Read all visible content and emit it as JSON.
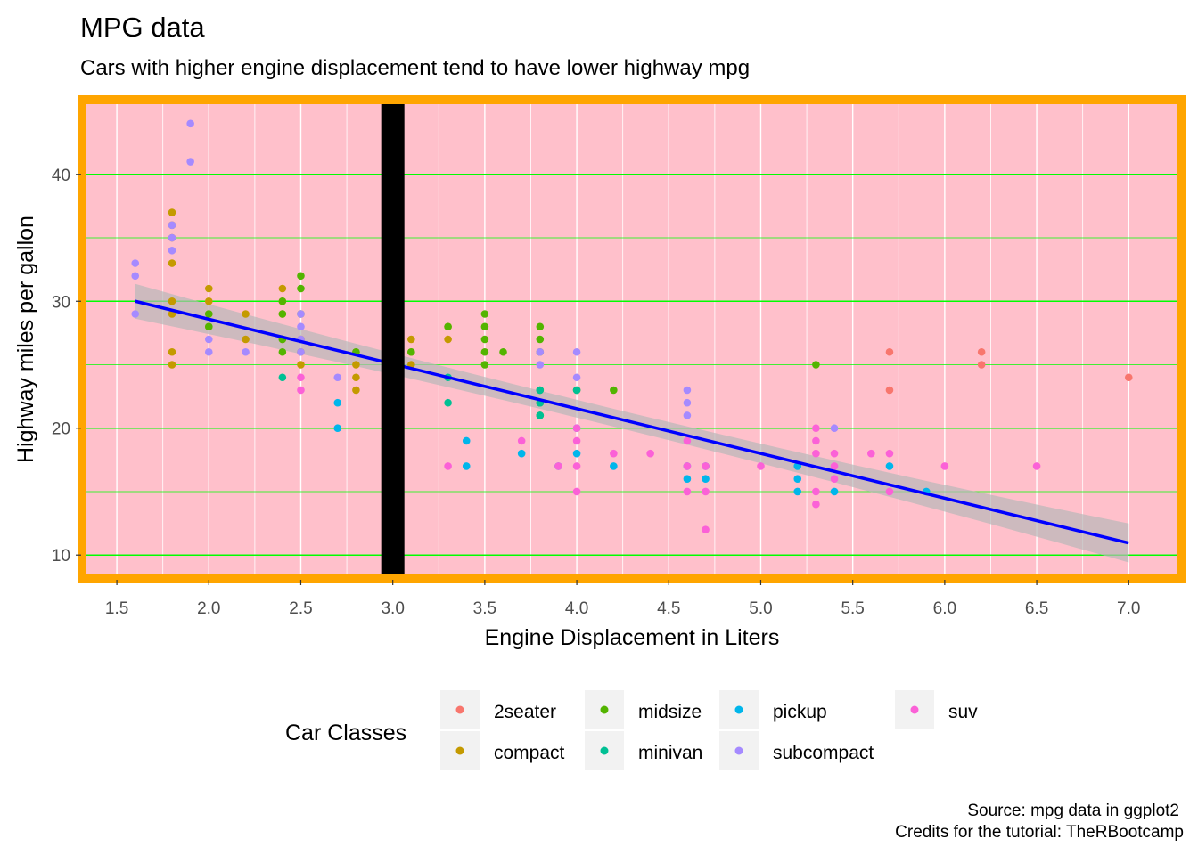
{
  "chart_data": {
    "type": "scatter",
    "title": "MPG data",
    "subtitle": "Cars with higher engine displacement tend to have lower highway mpg",
    "xlabel": "Engine Displacement in Liters",
    "ylabel": "Highway miles per gallon",
    "caption": [
      "Source: mpg data in ggplot2",
      "Credits for the tutorial: TheRBootcamp"
    ],
    "xlim": [
      1.33,
      7.27
    ],
    "ylim": [
      8.4,
      45.6
    ],
    "x_ticks": [
      "1.5",
      "2.0",
      "2.5",
      "3.0",
      "3.5",
      "4.0",
      "4.5",
      "5.0",
      "5.5",
      "6.0",
      "6.5",
      "7.0"
    ],
    "y_ticks": [
      "10",
      "20",
      "30",
      "40"
    ],
    "grid": true,
    "colors": {
      "panel_background": "#FFC0CB",
      "panel_border": "#FFA500",
      "major_grid_y": "#00FF00",
      "minor_grid_y": "#00FF00",
      "grid_x": "#FFFFFF",
      "trend_line": "#0000FF",
      "confidence_band": "#B8B8B8",
      "vline": "#000000"
    },
    "vline": {
      "x": 3.0,
      "color": "#000000"
    },
    "trend": {
      "type": "linear",
      "x": [
        1.6,
        7.0
      ],
      "y": [
        30.0,
        10.95
      ],
      "band_halfwidth": [
        0.7,
        1.45
      ]
    },
    "legend": {
      "title": "Car Classes",
      "position": "bottom",
      "entries": [
        {
          "name": "2seater",
          "color": "#F8766D"
        },
        {
          "name": "compact",
          "color": "#C49A00"
        },
        {
          "name": "midsize",
          "color": "#53B400"
        },
        {
          "name": "minivan",
          "color": "#00C094"
        },
        {
          "name": "pickup",
          "color": "#00B6EB"
        },
        {
          "name": "subcompact",
          "color": "#A58AFF"
        },
        {
          "name": "suv",
          "color": "#FB61D7"
        }
      ]
    },
    "series": [
      {
        "name": "2seater",
        "color": "#F8766D",
        "points": [
          [
            5.7,
            26
          ],
          [
            5.7,
            23
          ],
          [
            6.2,
            26
          ],
          [
            6.2,
            25
          ],
          [
            7.0,
            24
          ]
        ]
      },
      {
        "name": "compact",
        "color": "#C49A00",
        "points": [
          [
            1.8,
            37
          ],
          [
            1.8,
            36
          ],
          [
            1.8,
            35
          ],
          [
            1.8,
            33
          ],
          [
            1.8,
            30
          ],
          [
            1.8,
            29
          ],
          [
            1.8,
            26
          ],
          [
            1.8,
            25
          ],
          [
            2.0,
            31
          ],
          [
            2.0,
            30
          ],
          [
            2.0,
            29
          ],
          [
            2.0,
            28
          ],
          [
            2.2,
            29
          ],
          [
            2.2,
            27
          ],
          [
            2.4,
            31
          ],
          [
            2.4,
            30
          ],
          [
            2.4,
            29
          ],
          [
            2.4,
            27
          ],
          [
            2.5,
            27
          ],
          [
            2.5,
            26
          ],
          [
            2.5,
            25
          ],
          [
            2.8,
            26
          ],
          [
            2.8,
            25
          ],
          [
            2.8,
            24
          ],
          [
            2.8,
            23
          ],
          [
            3.1,
            27
          ],
          [
            3.1,
            26
          ],
          [
            3.1,
            25
          ],
          [
            3.3,
            28
          ],
          [
            3.3,
            27
          ]
        ]
      },
      {
        "name": "midsize",
        "color": "#53B400",
        "points": [
          [
            2.0,
            29
          ],
          [
            2.0,
            28
          ],
          [
            2.4,
            30
          ],
          [
            2.4,
            29
          ],
          [
            2.4,
            27
          ],
          [
            2.4,
            26
          ],
          [
            2.5,
            32
          ],
          [
            2.5,
            31
          ],
          [
            2.5,
            29
          ],
          [
            2.8,
            26
          ],
          [
            3.0,
            26
          ],
          [
            3.1,
            26
          ],
          [
            3.3,
            28
          ],
          [
            3.5,
            29
          ],
          [
            3.5,
            28
          ],
          [
            3.5,
            27
          ],
          [
            3.5,
            26
          ],
          [
            3.5,
            25
          ],
          [
            3.6,
            26
          ],
          [
            3.8,
            28
          ],
          [
            3.8,
            27
          ],
          [
            3.8,
            26
          ],
          [
            3.8,
            23
          ],
          [
            3.8,
            22
          ],
          [
            3.8,
            21
          ],
          [
            4.0,
            23
          ],
          [
            4.2,
            23
          ],
          [
            5.3,
            25
          ]
        ]
      },
      {
        "name": "minivan",
        "color": "#00C094",
        "points": [
          [
            2.4,
            24
          ],
          [
            3.0,
            24
          ],
          [
            3.3,
            24
          ],
          [
            3.3,
            22
          ],
          [
            3.8,
            23
          ],
          [
            3.8,
            22
          ],
          [
            3.8,
            21
          ],
          [
            4.0,
            23
          ]
        ]
      },
      {
        "name": "pickup",
        "color": "#00B6EB",
        "points": [
          [
            2.7,
            22
          ],
          [
            2.7,
            20
          ],
          [
            3.4,
            19
          ],
          [
            3.4,
            17
          ],
          [
            3.7,
            18
          ],
          [
            3.9,
            17
          ],
          [
            4.0,
            20
          ],
          [
            4.0,
            18
          ],
          [
            4.2,
            17
          ],
          [
            4.6,
            17
          ],
          [
            4.6,
            16
          ],
          [
            4.7,
            17
          ],
          [
            4.7,
            16
          ],
          [
            5.2,
            17
          ],
          [
            5.2,
            16
          ],
          [
            5.2,
            15
          ],
          [
            5.4,
            15
          ],
          [
            5.7,
            17
          ],
          [
            5.9,
            15
          ]
        ]
      },
      {
        "name": "subcompact",
        "color": "#A58AFF",
        "points": [
          [
            1.6,
            33
          ],
          [
            1.6,
            32
          ],
          [
            1.6,
            29
          ],
          [
            1.8,
            36
          ],
          [
            1.8,
            35
          ],
          [
            1.8,
            34
          ],
          [
            1.9,
            44
          ],
          [
            1.9,
            41
          ],
          [
            2.0,
            27
          ],
          [
            2.0,
            26
          ],
          [
            2.2,
            26
          ],
          [
            2.5,
            29
          ],
          [
            2.5,
            28
          ],
          [
            2.5,
            27
          ],
          [
            2.5,
            26
          ],
          [
            2.7,
            24
          ],
          [
            3.8,
            26
          ],
          [
            3.8,
            25
          ],
          [
            4.0,
            26
          ],
          [
            4.0,
            24
          ],
          [
            4.6,
            23
          ],
          [
            4.6,
            22
          ],
          [
            4.6,
            21
          ],
          [
            5.4,
            20
          ]
        ]
      },
      {
        "name": "suv",
        "color": "#FB61D7",
        "points": [
          [
            2.5,
            24
          ],
          [
            2.5,
            23
          ],
          [
            3.3,
            17
          ],
          [
            3.7,
            19
          ],
          [
            3.9,
            17
          ],
          [
            4.0,
            20
          ],
          [
            4.0,
            19
          ],
          [
            4.0,
            17
          ],
          [
            4.0,
            15
          ],
          [
            4.2,
            18
          ],
          [
            4.4,
            18
          ],
          [
            4.6,
            19
          ],
          [
            4.6,
            17
          ],
          [
            4.6,
            15
          ],
          [
            4.7,
            17
          ],
          [
            4.7,
            15
          ],
          [
            4.7,
            12
          ],
          [
            5.0,
            17
          ],
          [
            5.3,
            20
          ],
          [
            5.3,
            19
          ],
          [
            5.3,
            18
          ],
          [
            5.3,
            15
          ],
          [
            5.3,
            14
          ],
          [
            5.4,
            18
          ],
          [
            5.4,
            17
          ],
          [
            5.4,
            16
          ],
          [
            5.6,
            18
          ],
          [
            5.7,
            18
          ],
          [
            5.7,
            15
          ],
          [
            6.0,
            17
          ],
          [
            6.5,
            17
          ]
        ]
      }
    ]
  }
}
